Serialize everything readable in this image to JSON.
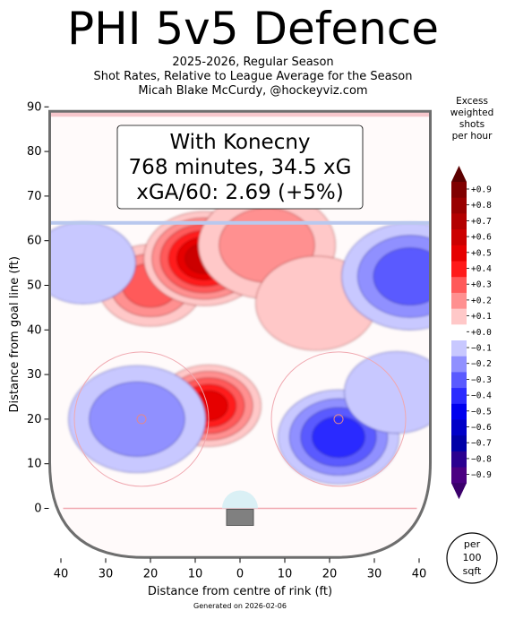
{
  "header": {
    "title": "PHI 5v5 Defence",
    "subtitle_1": "2025-2026, Regular Season",
    "subtitle_2": "Shot Rates, Relative to League Average for the Season",
    "subtitle_3": "Micah Blake McCurdy, @hockeyviz.com"
  },
  "callout": {
    "line_1": "With Konecny",
    "line_2": "768 minutes, 34.5 xG",
    "line_3": "xGA/60: 2.69 (+5%)"
  },
  "footer": {
    "generated": "Generated on 2026-02-06",
    "per_area_label_1": "per",
    "per_area_label_2": "100",
    "per_area_label_3": "sqft"
  },
  "chart_data": {
    "type": "heatmap",
    "title": "PHI 5v5 Defence",
    "xlabel": "Distance from centre of rink (ft)",
    "ylabel": "Distance from goal line (ft)",
    "x_ticks": [
      "40",
      "30",
      "20",
      "10",
      "0",
      "10",
      "20",
      "30",
      "40"
    ],
    "y_ticks": [
      "0",
      "10",
      "20",
      "30",
      "40",
      "50",
      "60",
      "70",
      "80",
      "90"
    ],
    "xlim": [
      -42.5,
      42.5
    ],
    "ylim": [
      -11,
      90
    ],
    "grid": false,
    "colorbar": {
      "title_lines": [
        "Excess",
        "weighted",
        "shots",
        "per hour"
      ],
      "labels": [
        "+0.9",
        "+0.8",
        "+0.7",
        "+0.6",
        "+0.5",
        "+0.4",
        "+0.3",
        "+0.2",
        "+0.1",
        "+0.0",
        "−0.1",
        "−0.2",
        "−0.3",
        "−0.4",
        "−0.5",
        "−0.6",
        "−0.7",
        "−0.8",
        "−0.9"
      ],
      "colors": [
        "#800000",
        "#990000",
        "#b30000",
        "#cc0000",
        "#e60000",
        "#ff1a1a",
        "#ff5a5a",
        "#ff9090",
        "#ffc8c8",
        "#ffffff",
        "#c8c8ff",
        "#9090ff",
        "#5a5aff",
        "#2a2aff",
        "#0000ee",
        "#0000c8",
        "#0000a8",
        "#2a0090",
        "#4b0082"
      ]
    },
    "hotspots": [
      {
        "x": -20,
        "y": 50,
        "value": 0.3
      },
      {
        "x": -8,
        "y": 56,
        "value": 0.6
      },
      {
        "x": 6,
        "y": 59,
        "value": 0.2
      },
      {
        "x": -7,
        "y": 23,
        "value": 0.5
      },
      {
        "x": 17,
        "y": 46,
        "value": 0.1
      },
      {
        "x": -23,
        "y": 20,
        "value": -0.2
      },
      {
        "x": -35,
        "y": 55,
        "value": -0.1
      },
      {
        "x": 22,
        "y": 16,
        "value": -0.4
      },
      {
        "x": 38,
        "y": 52,
        "value": -0.3
      },
      {
        "x": 35,
        "y": 26,
        "value": -0.1
      }
    ]
  }
}
